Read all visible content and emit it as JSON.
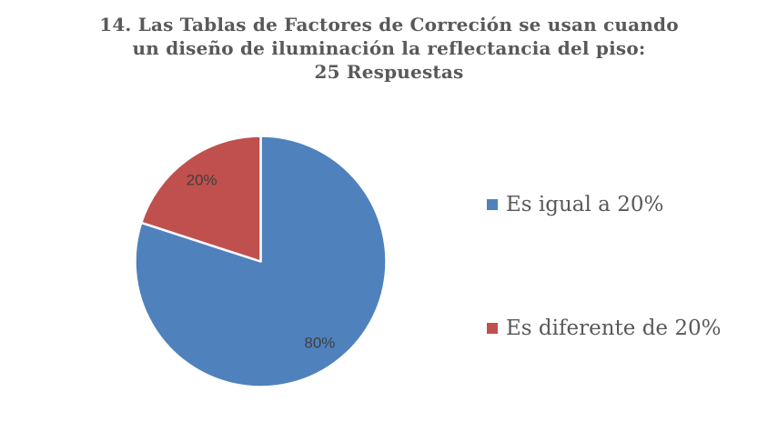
{
  "page": {
    "background": "#FFFFFF"
  },
  "chart_data": {
    "type": "pie",
    "title": "14. Las Tablas de Factores de Correción se usan cuando un diseño de iluminación la reflectancia del piso: 25 Respuestas",
    "title_lines": [
      "14. Las Tablas de Factores de Correción se usan cuando",
      "un diseño de iluminación la reflectancia del piso:",
      "25 Respuestas"
    ],
    "responses_count": 25,
    "slices": [
      {
        "label": "Es igual a 20%",
        "value": 80,
        "percent_label": "80%",
        "color": "#4F81BD"
      },
      {
        "label": "Es diferente de 20%",
        "value": 20,
        "percent_label": "20%",
        "color": "#C0504D"
      }
    ],
    "legend_position": "right",
    "start_angle_deg": 0,
    "direction": "clockwise",
    "label_radius_fraction": 0.8
  },
  "colors": {
    "title_text": "#595959",
    "legend_text": "#595959",
    "data_label_text": "#3F3F3F",
    "slice_border": "#FFFFFF"
  }
}
